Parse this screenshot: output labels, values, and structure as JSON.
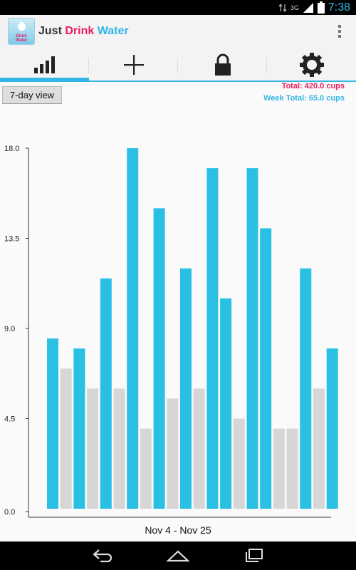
{
  "status_bar": {
    "network": "3G",
    "time": "7:38",
    "accent": "#33b5e5"
  },
  "app": {
    "title_part1": "Just",
    "title_part2": "Drink",
    "title_part3": "Water",
    "icon_label": "Drink Water"
  },
  "tabs": [
    {
      "name": "stats",
      "icon": "bar-chart-icon",
      "selected": true
    },
    {
      "name": "add",
      "icon": "plus-icon",
      "selected": false
    },
    {
      "name": "lock",
      "icon": "lock-icon",
      "selected": false
    },
    {
      "name": "settings",
      "icon": "gear-icon",
      "selected": false
    }
  ],
  "view_button": {
    "label": "7-day view"
  },
  "totals": {
    "total": "Total: 420.0 cups",
    "week_total": "Week Total: 65.0 cups"
  },
  "chart_data": {
    "type": "bar",
    "ylim": [
      0,
      18
    ],
    "yticks": [
      "0.0",
      "4.5",
      "9.0",
      "13.5",
      "18.0"
    ],
    "xlabel": "Nov 4 - Nov 25",
    "colors": {
      "primary": "#29c0e3",
      "secondary": "#d6d6d6"
    },
    "bars": [
      {
        "value": 8.5,
        "series": "primary"
      },
      {
        "value": 7.0,
        "series": "secondary"
      },
      {
        "value": 8.0,
        "series": "primary"
      },
      {
        "value": 6.0,
        "series": "secondary"
      },
      {
        "value": 11.5,
        "series": "primary"
      },
      {
        "value": 6.0,
        "series": "secondary"
      },
      {
        "value": 18.0,
        "series": "primary"
      },
      {
        "value": 4.0,
        "series": "secondary"
      },
      {
        "value": 15.0,
        "series": "primary"
      },
      {
        "value": 5.5,
        "series": "secondary"
      },
      {
        "value": 12.0,
        "series": "primary"
      },
      {
        "value": 6.0,
        "series": "secondary"
      },
      {
        "value": 17.0,
        "series": "primary"
      },
      {
        "value": 10.5,
        "series": "primary"
      },
      {
        "value": 4.5,
        "series": "secondary"
      },
      {
        "value": 17.0,
        "series": "primary"
      },
      {
        "value": 14.0,
        "series": "primary"
      },
      {
        "value": 4.0,
        "series": "secondary"
      },
      {
        "value": 4.0,
        "series": "secondary"
      },
      {
        "value": 12.0,
        "series": "primary"
      },
      {
        "value": 6.0,
        "series": "secondary"
      },
      {
        "value": 8.0,
        "series": "primary"
      }
    ]
  },
  "nav": [
    {
      "name": "back",
      "icon": "back-icon"
    },
    {
      "name": "home",
      "icon": "home-icon"
    },
    {
      "name": "recents",
      "icon": "recents-icon"
    }
  ]
}
